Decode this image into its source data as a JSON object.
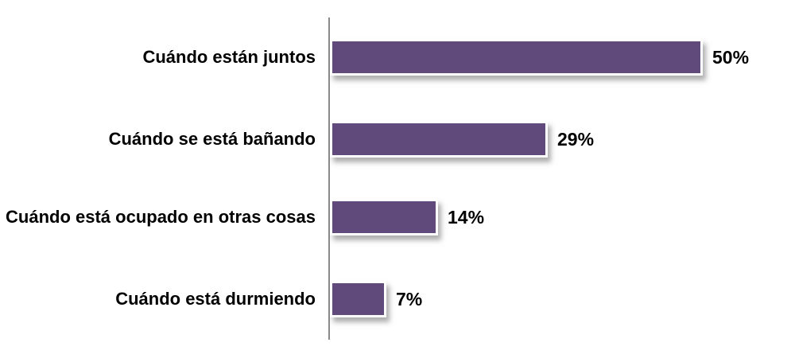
{
  "chart_data": {
    "type": "bar",
    "orientation": "horizontal",
    "title": "",
    "xlabel": "",
    "ylabel": "",
    "categories": [
      "Cuándo están juntos",
      "Cuándo se está bañando",
      "Cuándo está ocupado en otras cosas",
      "Cuándo está durmiendo"
    ],
    "values": [
      50,
      29,
      14,
      7
    ],
    "value_labels": [
      "50%",
      "29%",
      "14%",
      "7%"
    ],
    "xlim": [
      0,
      62
    ],
    "grid": false,
    "legend_visible": false,
    "colors": {
      "bar_fill": "#5F4A7B",
      "bar_border": "#FFFFFF",
      "axis_line": "#8A8A8A",
      "label_text": "#000000",
      "background": "#FFFFFF"
    }
  }
}
